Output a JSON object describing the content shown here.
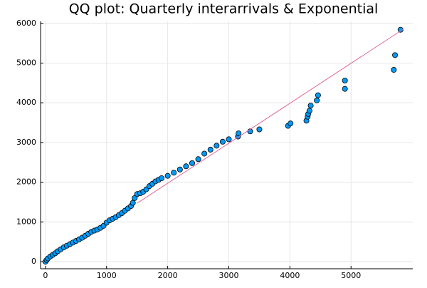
{
  "chart_data": {
    "type": "scatter",
    "title": "QQ plot: Quarterly interarrivals & Exponential",
    "xlim": [
      -80,
      6010
    ],
    "ylim": [
      -180,
      6050
    ],
    "xticks": [
      0,
      1000,
      2000,
      3000,
      4000,
      5000
    ],
    "yticks": [
      0,
      1000,
      2000,
      3000,
      4000,
      5000,
      6000
    ],
    "grid": true,
    "series": [
      {
        "color": "#009af9",
        "x": [
          0,
          20,
          40,
          80,
          120,
          160,
          200,
          250,
          300,
          350,
          400,
          450,
          500,
          550,
          600,
          650,
          700,
          750,
          800,
          850,
          900,
          950,
          1000,
          1050,
          1100,
          1150,
          1200,
          1250,
          1300,
          1350,
          1400,
          1430,
          1460,
          1500,
          1550,
          1600,
          1650,
          1700,
          1750,
          1800,
          1850,
          1900,
          2000,
          2100,
          2200,
          2300,
          2400,
          2500,
          2600,
          2700,
          2800,
          2900,
          3000,
          3150,
          3160,
          3350,
          3500,
          3970,
          4010,
          4270,
          4290,
          4300,
          4320,
          4340,
          4440,
          4460,
          4900,
          4900,
          5700,
          5720,
          5810
        ],
        "values": [
          0,
          40,
          80,
          130,
          170,
          210,
          260,
          310,
          360,
          400,
          440,
          480,
          520,
          560,
          600,
          650,
          700,
          750,
          780,
          810,
          850,
          900,
          980,
          1040,
          1080,
          1120,
          1170,
          1220,
          1280,
          1340,
          1400,
          1480,
          1600,
          1700,
          1720,
          1760,
          1820,
          1900,
          1960,
          2020,
          2060,
          2100,
          2160,
          2240,
          2320,
          2400,
          2480,
          2580,
          2720,
          2820,
          2920,
          3020,
          3080,
          3150,
          3230,
          3280,
          3330,
          3420,
          3480,
          3550,
          3650,
          3720,
          3800,
          3930,
          4060,
          4190,
          4350,
          4560,
          4830,
          5200,
          5840
        ]
      },
      {
        "type": "line",
        "color": "#e0689a",
        "x": [
          1500,
          5850
        ],
        "values": [
          1470,
          5850
        ]
      }
    ]
  }
}
